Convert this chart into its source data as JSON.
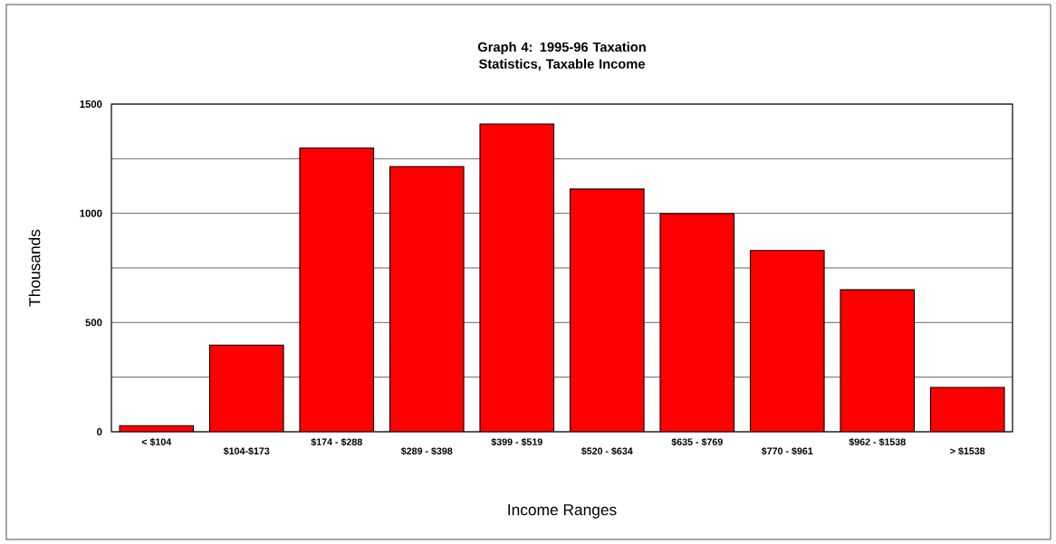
{
  "chart_data": {
    "type": "bar",
    "title": "Graph 4: 1995-96 Taxation Statistics, Taxable Income",
    "xlabel": "Income Ranges",
    "ylabel": "Thousands",
    "categories": [
      "< $104",
      "$104-$173",
      "$174 - $288",
      "$289 - $398",
      "$399 - $519",
      "$520 - $634",
      "$635 - $769",
      "$770 - $961",
      "$962 - $1538",
      "> $1538"
    ],
    "values": [
      28,
      397,
      1299,
      1214,
      1409,
      1111,
      999,
      830,
      650,
      203
    ],
    "color": "#ff0000",
    "ylim": [
      0,
      1500
    ],
    "yticks": [
      0,
      {
        "value": 250,
        "label": null
      },
      500,
      {
        "value": 750,
        "label": null
      },
      1000,
      {
        "value": 1250,
        "label": null
      },
      1500
    ],
    "grid": "y"
  }
}
